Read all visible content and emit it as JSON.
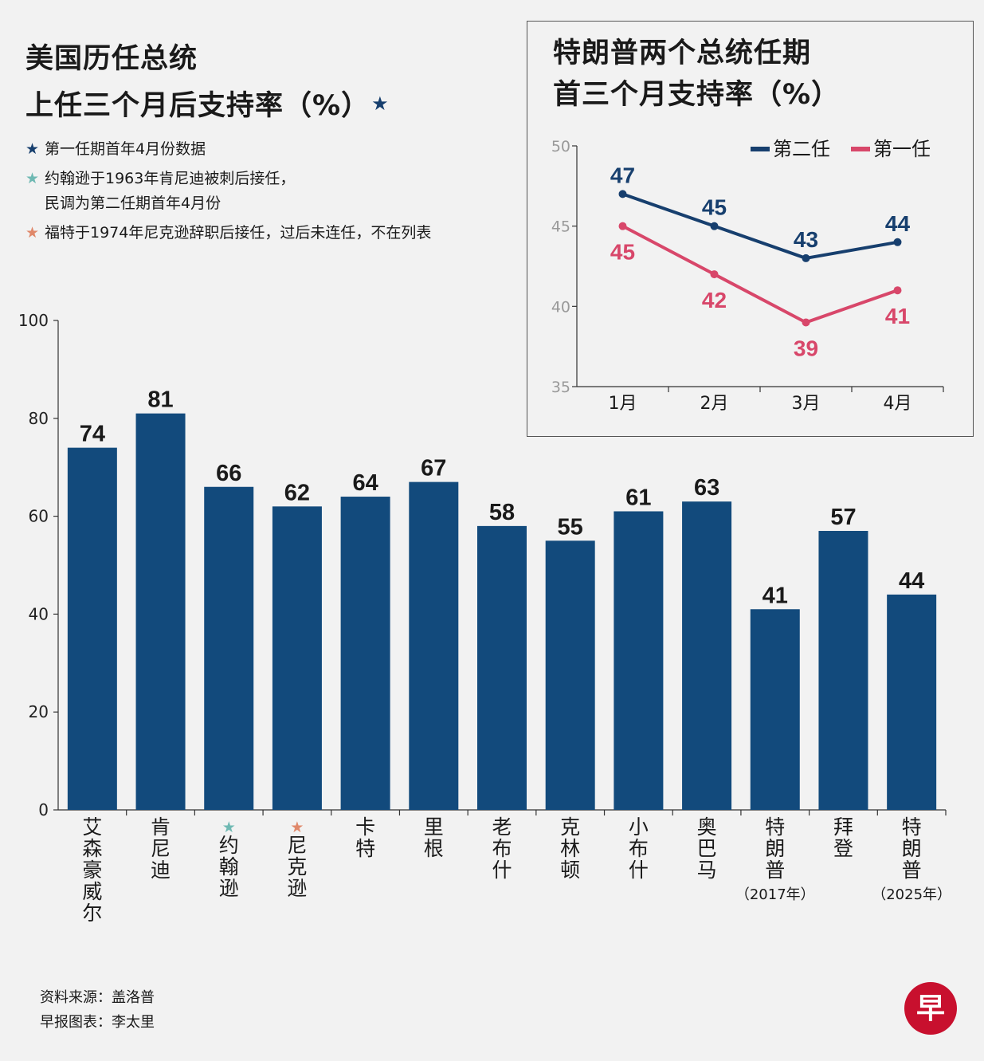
{
  "title": {
    "line1": "美国历任总统",
    "line2": "上任三个月后支持率（%）",
    "star": "★",
    "star_color": "#173f6e"
  },
  "notes": [
    {
      "star": "★",
      "color": "#173f6e",
      "text": "第一任期首年4月份数据"
    },
    {
      "star": "★",
      "color": "#6fb9b3",
      "text": "约翰逊于1963年肯尼迪被刺后接任，\n民调为第二任期首年4月份"
    },
    {
      "star": "★",
      "color": "#e0886a",
      "text": "福特于1974年尼克逊辞职后接任，过后未连任，不在列表"
    }
  ],
  "source": {
    "line1": "资料来源：盖洛普",
    "line2": "早报图表：李太里"
  },
  "logo": {
    "char": "早",
    "color": "#c8102e"
  },
  "inset": {
    "title_line1": "特朗普两个总统任期",
    "title_line2": "首三个月支持率（%）"
  },
  "chart_data": [
    {
      "type": "bar",
      "categories": [
        "艾森豪威尔",
        "肯尼迪",
        "约翰逊",
        "尼克逊",
        "卡特",
        "里根",
        "老布什",
        "克林顿",
        "小布什",
        "奥巴马",
        "特朗普",
        "拜登",
        "特朗普"
      ],
      "category_notes": [
        "",
        "",
        "★",
        "★",
        "",
        "",
        "",
        "",
        "",
        "",
        "（2017年）",
        "",
        "（2025年）"
      ],
      "category_note_colors": [
        "",
        "",
        "#6fb9b3",
        "#e0886a",
        "",
        "",
        "",
        "",
        "",
        "",
        "",
        "",
        ""
      ],
      "values": [
        74,
        81,
        66,
        62,
        64,
        67,
        58,
        55,
        61,
        63,
        41,
        57,
        44
      ],
      "ylim": [
        0,
        100
      ],
      "yticks": [
        0,
        20,
        40,
        60,
        80,
        100
      ],
      "bar_color": "#124a7c"
    },
    {
      "type": "line",
      "x": [
        "1月",
        "2月",
        "3月",
        "4月"
      ],
      "series": [
        {
          "name": "第二任",
          "values": [
            47,
            45,
            43,
            44
          ],
          "color": "#173f6e"
        },
        {
          "name": "第一任",
          "values": [
            45,
            42,
            39,
            41
          ],
          "color": "#d8476a"
        }
      ],
      "ylim": [
        35,
        50
      ],
      "yticks": [
        35,
        40,
        45,
        50
      ],
      "legend": "top-right"
    }
  ]
}
